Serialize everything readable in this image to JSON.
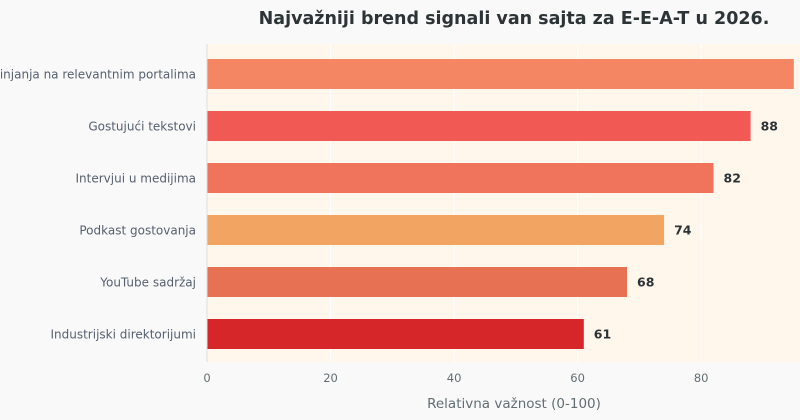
{
  "chart_data": {
    "type": "bar",
    "orientation": "horizontal",
    "title": "Najvažniji brend signali van sajta za E-E-A-T u 2026.",
    "xlabel": "Relativna važnost (0-100)",
    "ylabel": "",
    "xlim": [
      0,
      96
    ],
    "xticks": [
      0,
      20,
      40,
      60,
      80
    ],
    "grid": true,
    "categories": [
      "Pominjanja na relevantnim portalima",
      "Gostujući tekstovi",
      "Intervjui u medijima",
      "Podkast gostovanja",
      "YouTube sadržaj",
      "Industrijski direktorijumi"
    ],
    "values": [
      95,
      88,
      82,
      74,
      68,
      61
    ],
    "value_labels": [
      "",
      "88",
      "82",
      "74",
      "68",
      "61"
    ],
    "colors": [
      "#f58663",
      "#f15a54",
      "#f0735c",
      "#f2a562",
      "#e67153",
      "#d6262a"
    ],
    "plot_background": "#fff6ec",
    "page_background": "#f9f9f9"
  }
}
